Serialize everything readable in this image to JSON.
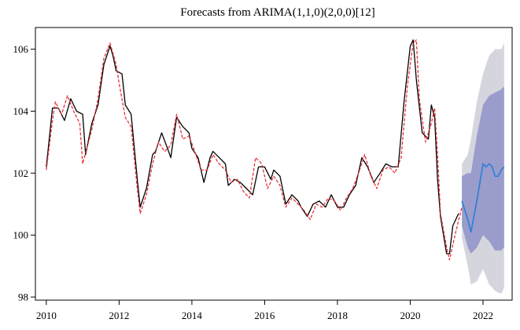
{
  "chart_data": {
    "type": "line",
    "title": "Forecasts from ARIMA(1,1,0)(2,0,0)[12]",
    "xlabel": "",
    "ylabel": "",
    "xlim": [
      2009.7,
      2022.8
    ],
    "ylim": [
      97.9,
      106.7
    ],
    "x_ticks": [
      2010,
      2012,
      2014,
      2016,
      2018,
      2020,
      2022
    ],
    "y_ticks": [
      98,
      100,
      102,
      104,
      106
    ],
    "x_tick_labels": [
      "2010",
      "2012",
      "2014",
      "2016",
      "2018",
      "2020",
      "2022"
    ],
    "y_tick_labels": [
      "98",
      "100",
      "102",
      "104",
      "106"
    ],
    "grid": false,
    "legend": "none",
    "series": [
      {
        "role": "observed",
        "color": "#000000",
        "style": "solid",
        "points": [
          [
            2010.0,
            102.2
          ],
          [
            2010.17,
            104.1
          ],
          [
            2010.33,
            104.1
          ],
          [
            2010.5,
            103.7
          ],
          [
            2010.67,
            104.4
          ],
          [
            2010.83,
            104.0
          ],
          [
            2011.0,
            103.9
          ],
          [
            2011.08,
            102.6
          ],
          [
            2011.25,
            103.6
          ],
          [
            2011.42,
            104.2
          ],
          [
            2011.58,
            105.5
          ],
          [
            2011.75,
            106.1
          ],
          [
            2011.83,
            105.8
          ],
          [
            2011.92,
            105.3
          ],
          [
            2012.08,
            105.2
          ],
          [
            2012.17,
            104.2
          ],
          [
            2012.33,
            103.9
          ],
          [
            2012.5,
            101.8
          ],
          [
            2012.58,
            100.9
          ],
          [
            2012.75,
            101.5
          ],
          [
            2012.92,
            102.6
          ],
          [
            2013.0,
            102.7
          ],
          [
            2013.17,
            103.3
          ],
          [
            2013.33,
            102.8
          ],
          [
            2013.42,
            102.5
          ],
          [
            2013.58,
            103.8
          ],
          [
            2013.75,
            103.5
          ],
          [
            2013.92,
            103.3
          ],
          [
            2014.0,
            102.8
          ],
          [
            2014.17,
            102.5
          ],
          [
            2014.33,
            101.7
          ],
          [
            2014.5,
            102.5
          ],
          [
            2014.58,
            102.7
          ],
          [
            2014.75,
            102.5
          ],
          [
            2014.92,
            102.3
          ],
          [
            2015.0,
            101.6
          ],
          [
            2015.17,
            101.8
          ],
          [
            2015.33,
            101.7
          ],
          [
            2015.5,
            101.5
          ],
          [
            2015.67,
            101.3
          ],
          [
            2015.83,
            102.2
          ],
          [
            2016.0,
            102.2
          ],
          [
            2016.17,
            101.8
          ],
          [
            2016.25,
            102.1
          ],
          [
            2016.42,
            101.9
          ],
          [
            2016.58,
            101.0
          ],
          [
            2016.75,
            101.3
          ],
          [
            2016.92,
            101.1
          ],
          [
            2017.0,
            100.9
          ],
          [
            2017.17,
            100.6
          ],
          [
            2017.33,
            101.0
          ],
          [
            2017.5,
            101.1
          ],
          [
            2017.67,
            100.9
          ],
          [
            2017.83,
            101.3
          ],
          [
            2018.0,
            100.9
          ],
          [
            2018.17,
            100.9
          ],
          [
            2018.33,
            101.3
          ],
          [
            2018.5,
            101.6
          ],
          [
            2018.67,
            102.5
          ],
          [
            2018.83,
            102.2
          ],
          [
            2019.0,
            101.7
          ],
          [
            2019.17,
            102.0
          ],
          [
            2019.33,
            102.3
          ],
          [
            2019.5,
            102.2
          ],
          [
            2019.67,
            102.2
          ],
          [
            2019.83,
            104.3
          ],
          [
            2020.0,
            106.1
          ],
          [
            2020.08,
            106.3
          ],
          [
            2020.17,
            105.0
          ],
          [
            2020.33,
            103.3
          ],
          [
            2020.5,
            103.1
          ],
          [
            2020.58,
            104.2
          ],
          [
            2020.67,
            103.8
          ],
          [
            2020.75,
            101.8
          ],
          [
            2020.83,
            100.6
          ],
          [
            2021.0,
            99.4
          ],
          [
            2021.08,
            99.4
          ],
          [
            2021.17,
            100.3
          ],
          [
            2021.33,
            100.7
          ]
        ]
      },
      {
        "role": "fitted",
        "color": "#e8323c",
        "style": "dashed",
        "points": [
          [
            2010.0,
            102.1
          ],
          [
            2010.17,
            103.7
          ],
          [
            2010.25,
            104.3
          ],
          [
            2010.42,
            103.9
          ],
          [
            2010.58,
            104.5
          ],
          [
            2010.75,
            104.0
          ],
          [
            2010.92,
            103.6
          ],
          [
            2011.0,
            102.3
          ],
          [
            2011.25,
            103.4
          ],
          [
            2011.42,
            104.4
          ],
          [
            2011.58,
            105.7
          ],
          [
            2011.75,
            106.2
          ],
          [
            2011.92,
            105.5
          ],
          [
            2012.0,
            104.9
          ],
          [
            2012.17,
            103.8
          ],
          [
            2012.33,
            103.5
          ],
          [
            2012.5,
            101.5
          ],
          [
            2012.58,
            100.7
          ],
          [
            2012.75,
            101.3
          ],
          [
            2012.92,
            102.3
          ],
          [
            2013.08,
            103.0
          ],
          [
            2013.25,
            102.7
          ],
          [
            2013.42,
            102.9
          ],
          [
            2013.58,
            103.9
          ],
          [
            2013.75,
            103.1
          ],
          [
            2013.92,
            103.2
          ],
          [
            2014.08,
            102.7
          ],
          [
            2014.25,
            102.1
          ],
          [
            2014.42,
            102.1
          ],
          [
            2014.58,
            102.6
          ],
          [
            2014.75,
            102.3
          ],
          [
            2014.92,
            102.1
          ],
          [
            2015.08,
            101.7
          ],
          [
            2015.25,
            101.8
          ],
          [
            2015.42,
            101.4
          ],
          [
            2015.58,
            101.2
          ],
          [
            2015.75,
            102.5
          ],
          [
            2015.92,
            102.3
          ],
          [
            2016.08,
            101.5
          ],
          [
            2016.25,
            101.9
          ],
          [
            2016.42,
            101.6
          ],
          [
            2016.58,
            100.9
          ],
          [
            2016.75,
            101.2
          ],
          [
            2016.92,
            101.0
          ],
          [
            2017.08,
            100.8
          ],
          [
            2017.25,
            100.5
          ],
          [
            2017.42,
            101.0
          ],
          [
            2017.58,
            100.9
          ],
          [
            2017.75,
            101.2
          ],
          [
            2017.92,
            101.1
          ],
          [
            2018.08,
            100.8
          ],
          [
            2018.25,
            101.2
          ],
          [
            2018.42,
            101.5
          ],
          [
            2018.58,
            102.0
          ],
          [
            2018.75,
            102.6
          ],
          [
            2018.92,
            101.9
          ],
          [
            2019.08,
            101.5
          ],
          [
            2019.25,
            102.1
          ],
          [
            2019.42,
            102.2
          ],
          [
            2019.58,
            102.0
          ],
          [
            2019.75,
            102.5
          ],
          [
            2019.92,
            104.8
          ],
          [
            2020.08,
            106.2
          ],
          [
            2020.17,
            106.3
          ],
          [
            2020.25,
            104.4
          ],
          [
            2020.42,
            103.0
          ],
          [
            2020.58,
            103.6
          ],
          [
            2020.67,
            104.1
          ],
          [
            2020.75,
            102.6
          ],
          [
            2020.83,
            100.7
          ],
          [
            2021.0,
            99.6
          ],
          [
            2021.08,
            99.2
          ],
          [
            2021.25,
            100.1
          ],
          [
            2021.42,
            100.9
          ]
        ]
      },
      {
        "role": "forecast",
        "color": "#2a7fd8",
        "style": "solid",
        "points": [
          [
            2021.42,
            101.1
          ],
          [
            2021.58,
            100.5
          ],
          [
            2021.67,
            100.1
          ],
          [
            2021.83,
            101.1
          ],
          [
            2022.0,
            102.3
          ],
          [
            2022.08,
            102.2
          ],
          [
            2022.17,
            102.3
          ],
          [
            2022.25,
            102.2
          ],
          [
            2022.33,
            101.9
          ],
          [
            2022.42,
            101.9
          ],
          [
            2022.5,
            102.1
          ],
          [
            2022.58,
            102.2
          ]
        ]
      }
    ],
    "intervals": [
      {
        "level": "outer",
        "color": "#d5d5de",
        "x": [
          2021.42,
          2021.58,
          2021.67,
          2021.83,
          2022.0,
          2022.17,
          2022.33,
          2022.5,
          2022.58
        ],
        "lower": [
          99.9,
          99.0,
          98.4,
          98.5,
          98.9,
          98.4,
          98.2,
          98.1,
          98.3
        ],
        "upper": [
          102.3,
          102.6,
          103.1,
          104.3,
          105.2,
          105.8,
          106.0,
          106.0,
          106.2
        ]
      },
      {
        "level": "inner",
        "color": "#9a9ccb",
        "x": [
          2021.42,
          2021.58,
          2021.67,
          2021.83,
          2022.0,
          2022.17,
          2022.33,
          2022.5,
          2022.58
        ],
        "lower": [
          100.3,
          99.6,
          99.4,
          99.6,
          100.0,
          99.8,
          99.5,
          99.5,
          99.6
        ],
        "upper": [
          101.9,
          102.0,
          102.0,
          103.2,
          104.2,
          104.5,
          104.6,
          104.7,
          104.8
        ]
      }
    ]
  }
}
